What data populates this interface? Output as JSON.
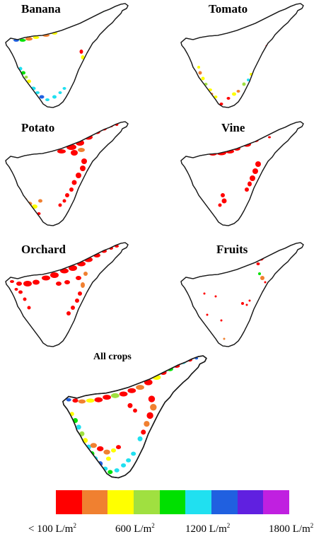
{
  "maps": [
    {
      "key": "banana",
      "title": "Banana"
    },
    {
      "key": "tomato",
      "title": "Tomato"
    },
    {
      "key": "potato",
      "title": "Potato"
    },
    {
      "key": "vine",
      "title": "Vine"
    },
    {
      "key": "orchard",
      "title": "Orchard"
    },
    {
      "key": "fruits",
      "title": "Fruits"
    },
    {
      "key": "all",
      "title": "All crops"
    }
  ],
  "legend": {
    "colors": [
      "#ff0000",
      "#f08030",
      "#ffff00",
      "#a0e040",
      "#00e000",
      "#20e0f0",
      "#2060e0",
      "#6020e0",
      "#c020e0"
    ],
    "labels": {
      "l1": {
        "text": "< 100  L/m",
        "sup": "2"
      },
      "l2": {
        "text": "600  L/m",
        "sup": "2"
      },
      "l3": {
        "text": "1200  L/m",
        "sup": "2"
      },
      "l4": {
        "text": "1800  L/m",
        "sup": "2"
      }
    }
  },
  "colors": {
    "red": "#ff0000",
    "orange": "#f08030",
    "yellow": "#ffff00",
    "yellowgreen": "#a0e040",
    "green": "#00e000",
    "cyan": "#20e0f0",
    "blue": "#2060e0",
    "coast": "#1a1a1a"
  }
}
